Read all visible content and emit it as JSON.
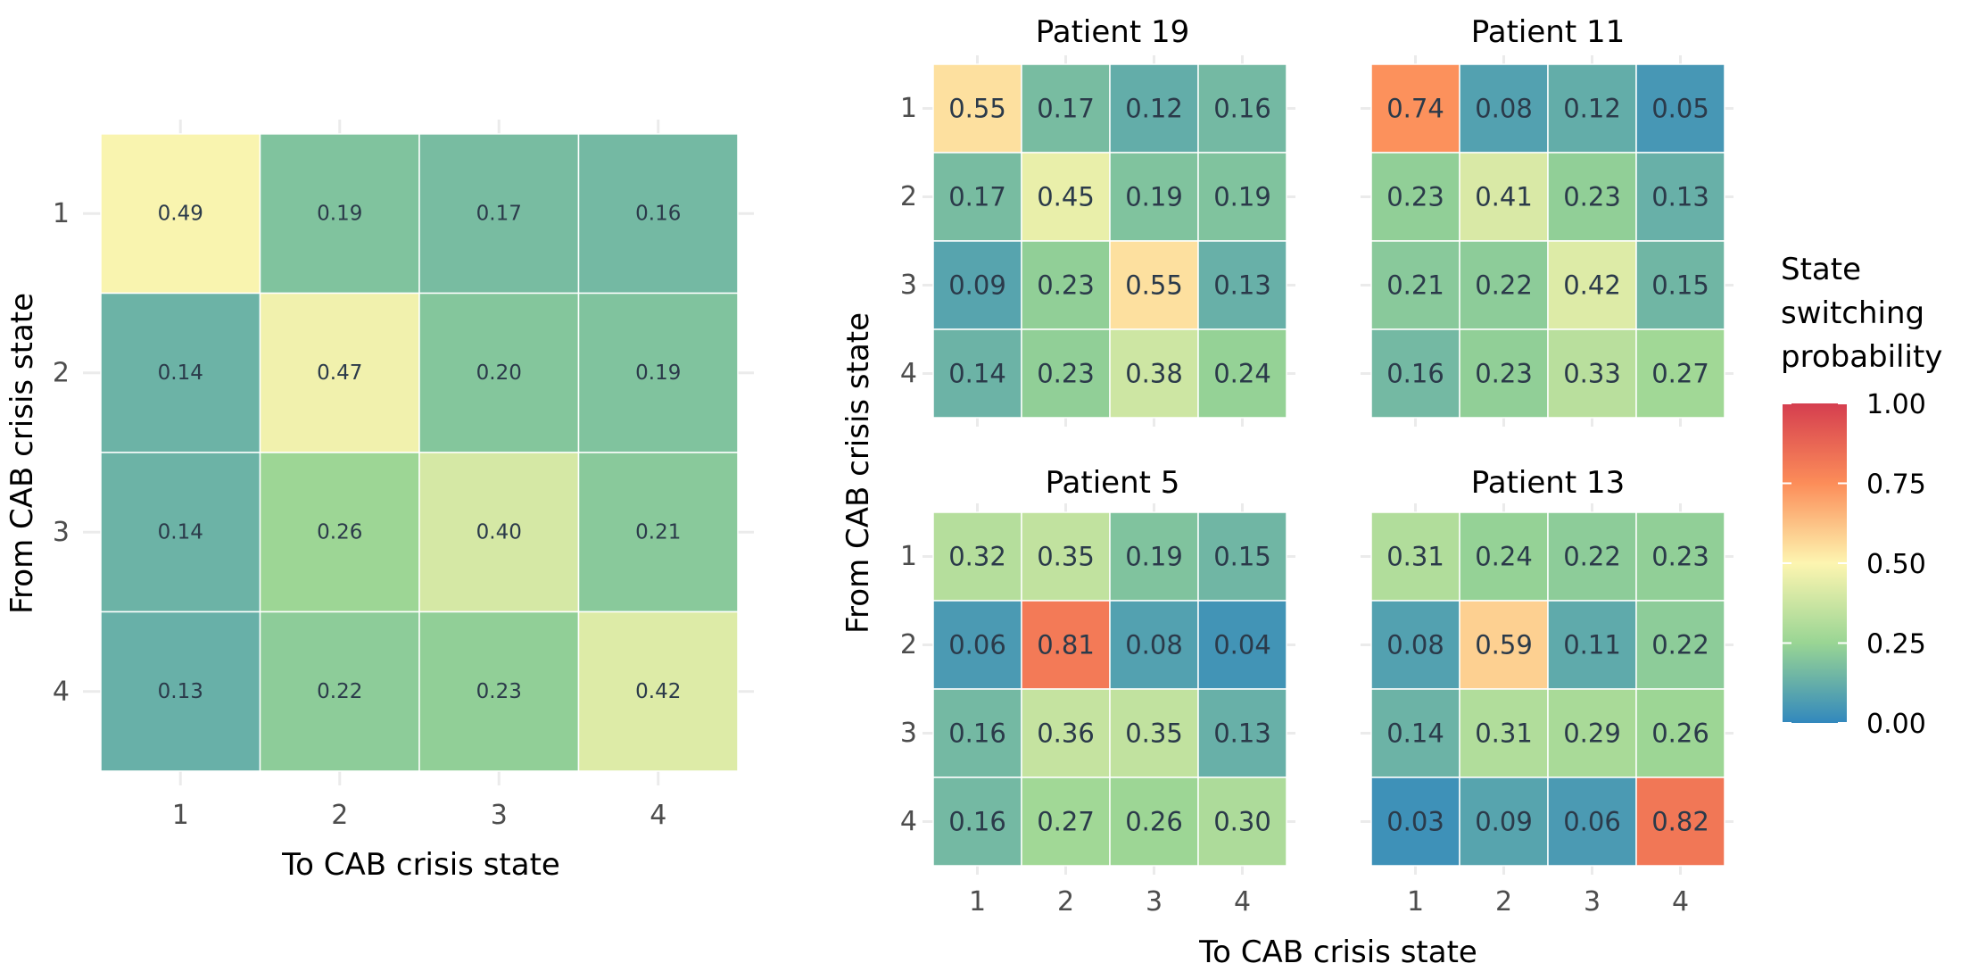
{
  "chart_data": [
    {
      "type": "heatmap",
      "title": "",
      "xlabel": "To CAB crisis state",
      "ylabel": "From CAB crisis state",
      "x_categories": [
        "1",
        "2",
        "3",
        "4"
      ],
      "y_categories": [
        "1",
        "2",
        "3",
        "4"
      ],
      "values": [
        [
          0.49,
          0.19,
          0.17,
          0.16
        ],
        [
          0.14,
          0.47,
          0.2,
          0.19
        ],
        [
          0.14,
          0.26,
          0.4,
          0.21
        ],
        [
          0.13,
          0.22,
          0.23,
          0.42
        ]
      ],
      "value_labels": [
        [
          "0.49",
          "0.19",
          "0.17",
          "0.16"
        ],
        [
          "0.14",
          "0.47",
          "0.20",
          "0.19"
        ],
        [
          "0.14",
          "0.26",
          "0.40",
          "0.21"
        ],
        [
          "0.13",
          "0.22",
          "0.23",
          "0.42"
        ]
      ],
      "color_range": [
        0,
        1
      ]
    },
    {
      "type": "heatmap",
      "layout": "faceted 2x2",
      "xlabel": "To CAB crisis state",
      "ylabel": "From CAB crisis state",
      "x_categories": [
        "1",
        "2",
        "3",
        "4"
      ],
      "y_categories": [
        "1",
        "2",
        "3",
        "4"
      ],
      "color_range": [
        0,
        1
      ],
      "facets": [
        {
          "title": "Patient 19",
          "values": [
            [
              0.55,
              0.17,
              0.12,
              0.16
            ],
            [
              0.17,
              0.45,
              0.19,
              0.19
            ],
            [
              0.09,
              0.23,
              0.55,
              0.13
            ],
            [
              0.14,
              0.23,
              0.38,
              0.24
            ]
          ],
          "value_labels": [
            [
              "0.55",
              "0.17",
              "0.12",
              "0.16"
            ],
            [
              "0.17",
              "0.45",
              "0.19",
              "0.19"
            ],
            [
              "0.09",
              "0.23",
              "0.55",
              "0.13"
            ],
            [
              "0.14",
              "0.23",
              "0.38",
              "0.24"
            ]
          ]
        },
        {
          "title": "Patient 11",
          "values": [
            [
              0.74,
              0.08,
              0.12,
              0.05
            ],
            [
              0.23,
              0.41,
              0.23,
              0.13
            ],
            [
              0.21,
              0.22,
              0.42,
              0.15
            ],
            [
              0.16,
              0.23,
              0.33,
              0.27
            ]
          ],
          "value_labels": [
            [
              "0.74",
              "0.08",
              "0.12",
              "0.05"
            ],
            [
              "0.23",
              "0.41",
              "0.23",
              "0.13"
            ],
            [
              "0.21",
              "0.22",
              "0.42",
              "0.15"
            ],
            [
              "0.16",
              "0.23",
              "0.33",
              "0.27"
            ]
          ]
        },
        {
          "title": "Patient 5",
          "values": [
            [
              0.32,
              0.35,
              0.19,
              0.15
            ],
            [
              0.06,
              0.81,
              0.08,
              0.04
            ],
            [
              0.16,
              0.36,
              0.35,
              0.13
            ],
            [
              0.16,
              0.27,
              0.26,
              0.3
            ]
          ],
          "value_labels": [
            [
              "0.32",
              "0.35",
              "0.19",
              "0.15"
            ],
            [
              "0.06",
              "0.81",
              "0.08",
              "0.04"
            ],
            [
              "0.16",
              "0.36",
              "0.35",
              "0.13"
            ],
            [
              "0.16",
              "0.27",
              "0.26",
              "0.30"
            ]
          ]
        },
        {
          "title": "Patient 13",
          "values": [
            [
              0.31,
              0.24,
              0.22,
              0.23
            ],
            [
              0.08,
              0.59,
              0.11,
              0.22
            ],
            [
              0.14,
              0.31,
              0.29,
              0.26
            ],
            [
              0.03,
              0.09,
              0.06,
              0.82
            ]
          ],
          "value_labels": [
            [
              "0.31",
              "0.24",
              "0.22",
              "0.23"
            ],
            [
              "0.08",
              "0.59",
              "0.11",
              "0.22"
            ],
            [
              "0.14",
              "0.31",
              "0.29",
              "0.26"
            ],
            [
              "0.03",
              "0.09",
              "0.06",
              "0.82"
            ]
          ]
        }
      ]
    }
  ],
  "legend": {
    "title_lines": [
      "State",
      "switching",
      "probability"
    ],
    "ticks": [
      "1.00",
      "0.75",
      "0.50",
      "0.25",
      "0.00"
    ],
    "tick_values": [
      1.0,
      0.75,
      0.5,
      0.25,
      0.0
    ],
    "colormap": "Spectral (reversed)",
    "stops": [
      "#3288bd",
      "#99d594",
      "#fdf5b0",
      "#fc8d59",
      "#d53e4f"
    ],
    "stop_values": [
      0,
      0.25,
      0.5,
      0.75,
      1.0
    ]
  }
}
